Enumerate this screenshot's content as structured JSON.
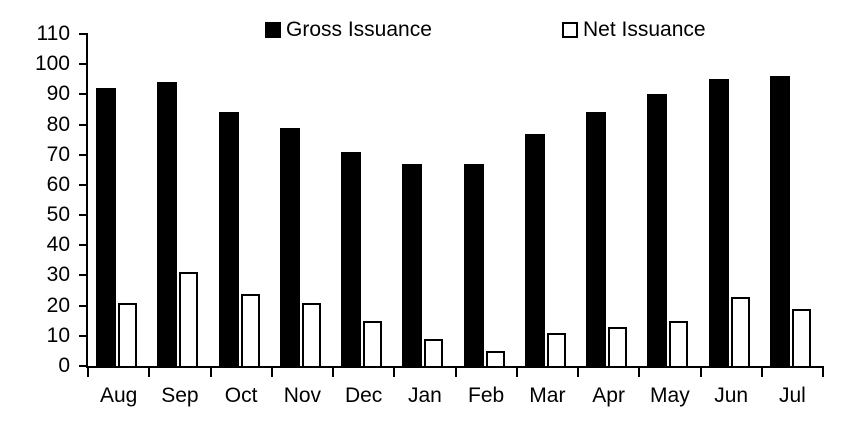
{
  "chart_data": {
    "type": "bar",
    "title": "",
    "categories": [
      "Aug",
      "Sep",
      "Oct",
      "Nov",
      "Dec",
      "Jan",
      "Feb",
      "Mar",
      "Apr",
      "May",
      "Jun",
      "Jul"
    ],
    "series": [
      {
        "name": "Gross Issuance",
        "values": [
          92,
          94,
          84,
          79,
          71,
          67,
          67,
          77,
          84,
          90,
          95,
          96
        ],
        "fill": "#000000",
        "border": "#000000"
      },
      {
        "name": "Net Issuance",
        "values": [
          21,
          31,
          24,
          21,
          15,
          9,
          5,
          11,
          13,
          15,
          23,
          19
        ],
        "fill": "#FFFFFF",
        "border": "#000000"
      }
    ],
    "xlabel": "",
    "ylabel": "",
    "ylim": [
      0,
      110
    ],
    "ytick_step": 10,
    "grid": false,
    "legend_position": "top",
    "axis_color": "#000000",
    "background_color": "#FFFFFF"
  }
}
